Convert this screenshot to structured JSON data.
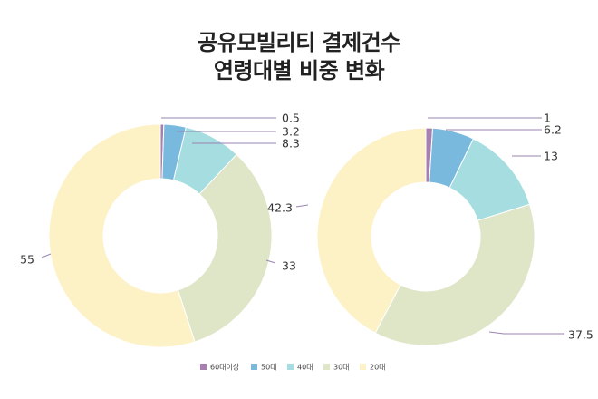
{
  "title_line1": "공유모빌리티 결제건수",
  "title_line2": "연령대별 비중 변화",
  "chart_data": [
    {
      "type": "pie",
      "categories": [
        "60대이상",
        "50대",
        "40대",
        "30대",
        "20대"
      ],
      "values": [
        0.5,
        3.2,
        8.3,
        33,
        55
      ],
      "labels": [
        "0.5",
        "3.2",
        "8.3",
        "33",
        "55"
      ]
    },
    {
      "type": "pie",
      "categories": [
        "60대이상",
        "50대",
        "40대",
        "30대",
        "20대"
      ],
      "values": [
        1,
        6.2,
        13,
        37.5,
        42.3
      ],
      "labels": [
        "1",
        "6.2",
        "13",
        "37.5",
        "42.3"
      ]
    }
  ],
  "legend": {
    "position": "bottom",
    "items": [
      {
        "label": "60대이상",
        "color": "#a780b1"
      },
      {
        "label": "50대",
        "color": "#7ab9de"
      },
      {
        "label": "40대",
        "color": "#a5dde0"
      },
      {
        "label": "30대",
        "color": "#dfe6c7"
      },
      {
        "label": "20대",
        "color": "#fdf1c6"
      }
    ]
  },
  "colors": {
    "line": "#9a84b0"
  }
}
